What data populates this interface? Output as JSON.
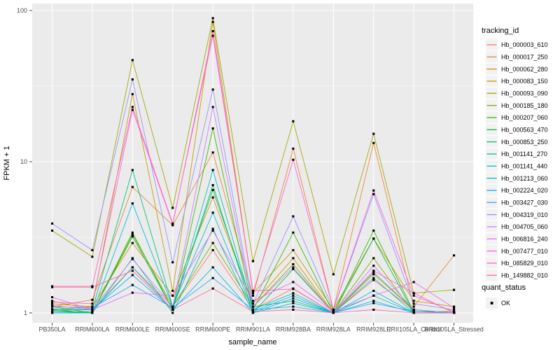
{
  "chart_data": {
    "type": "line",
    "title": "",
    "xlabel": "sample_name",
    "ylabel": "FPKM + 1",
    "y_scale": "log10",
    "y_ticks": [
      1,
      10,
      100
    ],
    "y_minor_ticks": [
      3.162,
      31.623
    ],
    "ylim": [
      1,
      105
    ],
    "grid": true,
    "panel_bg": "#EBEBEB",
    "grid_color": "#FFFFFF",
    "axis_text_color": "#4D4D4D",
    "axis_title_color": "#000000",
    "tick_mark_color": "#333333",
    "point_color": "#000000",
    "point_shape": "square",
    "legend_title": "tracking_id",
    "legend_key_bg": "#F2F2F2",
    "legend_position": "right",
    "quant_legend": {
      "title": "quant_status",
      "items": [
        {
          "label": "OK",
          "shape": "square",
          "color": "#000000"
        }
      ]
    },
    "categories": [
      "PB350LA",
      "RRIM600LA",
      "RRIM600LE",
      "RRIM600SE",
      "RRIM600PE",
      "RRIM901LA",
      "RRIM928BA",
      "RRIM928LA",
      "RRIM928LE",
      "RRII105LA_Control",
      "RRII105LA_Stressed"
    ],
    "series": [
      {
        "name": "Hb_000003_610",
        "color": "#F8766D",
        "values": [
          1.2,
          1.05,
          2.0,
          1.1,
          2.6,
          1.05,
          1.45,
          1.0,
          1.65,
          1.05,
          1.0
        ]
      },
      {
        "name": "Hb_000017_250",
        "color": "#EA8331",
        "values": [
          1.1,
          1.22,
          6.8,
          3.8,
          11.5,
          1.3,
          12.2,
          1.05,
          13.3,
          1.1,
          2.4
        ]
      },
      {
        "name": "Hb_000062_280",
        "color": "#D89000",
        "values": [
          1.05,
          1.1,
          2.9,
          1.3,
          5.8,
          1.15,
          2.3,
          1.0,
          1.8,
          1.05,
          1.0
        ]
      },
      {
        "name": "Hb_000083_150",
        "color": "#C09B00",
        "values": [
          1.15,
          1.1,
          28.0,
          1.4,
          84.0,
          1.35,
          2.6,
          1.05,
          3.1,
          1.2,
          1.1
        ]
      },
      {
        "name": "Hb_000093_090",
        "color": "#A3A500",
        "values": [
          3.5,
          2.35,
          47.0,
          4.95,
          89.0,
          2.2,
          18.5,
          1.8,
          15.3,
          1.35,
          1.42
        ]
      },
      {
        "name": "Hb_000185_180",
        "color": "#7CAE00",
        "values": [
          1.1,
          1.0,
          3.3,
          1.1,
          2.9,
          1.1,
          2.1,
          1.0,
          2.3,
          1.0,
          1.0
        ]
      },
      {
        "name": "Hb_000207_060",
        "color": "#39B600",
        "values": [
          1.05,
          1.0,
          3.4,
          1.05,
          16.6,
          1.05,
          3.4,
          1.0,
          3.5,
          1.02,
          1.02
        ]
      },
      {
        "name": "Hb_000563_470",
        "color": "#00BB4E",
        "values": [
          1.02,
          1.0,
          3.2,
          1.05,
          7.0,
          1.0,
          1.95,
          1.0,
          3.1,
          1.0,
          1.0
        ]
      },
      {
        "name": "Hb_000853_250",
        "color": "#00BF7D",
        "values": [
          1.04,
          1.05,
          8.8,
          1.1,
          6.5,
          1.1,
          1.2,
          1.0,
          1.85,
          1.05,
          1.0
        ]
      },
      {
        "name": "Hb_001141_270",
        "color": "#00C1A3",
        "values": [
          1.0,
          1.0,
          2.3,
          1.0,
          3.6,
          1.0,
          1.16,
          1.0,
          1.3,
          1.0,
          1.0
        ]
      },
      {
        "name": "Hb_001141_440",
        "color": "#00BFC4",
        "values": [
          1.02,
          1.02,
          2.0,
          1.05,
          8.8,
          1.05,
          1.35,
          1.0,
          1.7,
          1.0,
          1.0
        ]
      },
      {
        "name": "Hb_001213_060",
        "color": "#00BAE0",
        "values": [
          1.0,
          1.0,
          5.3,
          1.1,
          4.6,
          1.02,
          1.3,
          1.0,
          1.4,
          1.0,
          1.0
        ]
      },
      {
        "name": "Hb_002224_020",
        "color": "#00B0F6",
        "values": [
          1.06,
          1.05,
          1.78,
          1.05,
          2.0,
          1.0,
          1.25,
          1.0,
          1.2,
          1.0,
          1.0
        ]
      },
      {
        "name": "Hb_003427_030",
        "color": "#35A2FF",
        "values": [
          1.1,
          1.08,
          1.53,
          1.08,
          1.7,
          1.05,
          1.1,
          1.0,
          1.16,
          1.02,
          1.0
        ]
      },
      {
        "name": "Hb_004319_010",
        "color": "#9590FF",
        "values": [
          3.9,
          2.6,
          35.0,
          2.16,
          30.0,
          1.15,
          4.35,
          1.05,
          6.1,
          1.15,
          1.05
        ]
      },
      {
        "name": "Hb_004705_060",
        "color": "#C77CFF",
        "values": [
          1.12,
          1.05,
          2.27,
          1.1,
          23.0,
          1.1,
          2.0,
          1.0,
          2.05,
          1.05,
          1.0
        ]
      },
      {
        "name": "Hb_006816_240",
        "color": "#E76BF3",
        "values": [
          1.27,
          1.05,
          1.36,
          1.3,
          3.5,
          1.2,
          1.6,
          1.02,
          1.3,
          1.6,
          1.08
        ]
      },
      {
        "name": "Hb_007477_010",
        "color": "#FA62DB",
        "values": [
          1.18,
          1.15,
          22.0,
          3.85,
          73.0,
          1.36,
          10.3,
          1.05,
          6.45,
          1.3,
          1.02
        ]
      },
      {
        "name": "Hb_085829_010",
        "color": "#FF62BC",
        "values": [
          1.5,
          1.5,
          23.0,
          3.9,
          68.0,
          1.4,
          1.44,
          1.0,
          1.9,
          1.35,
          1.0
        ]
      },
      {
        "name": "Hb_149882_010",
        "color": "#FF6A98",
        "values": [
          1.48,
          1.48,
          1.9,
          1.05,
          1.45,
          1.02,
          1.05,
          1.0,
          1.05,
          1.0,
          1.0
        ]
      }
    ]
  }
}
